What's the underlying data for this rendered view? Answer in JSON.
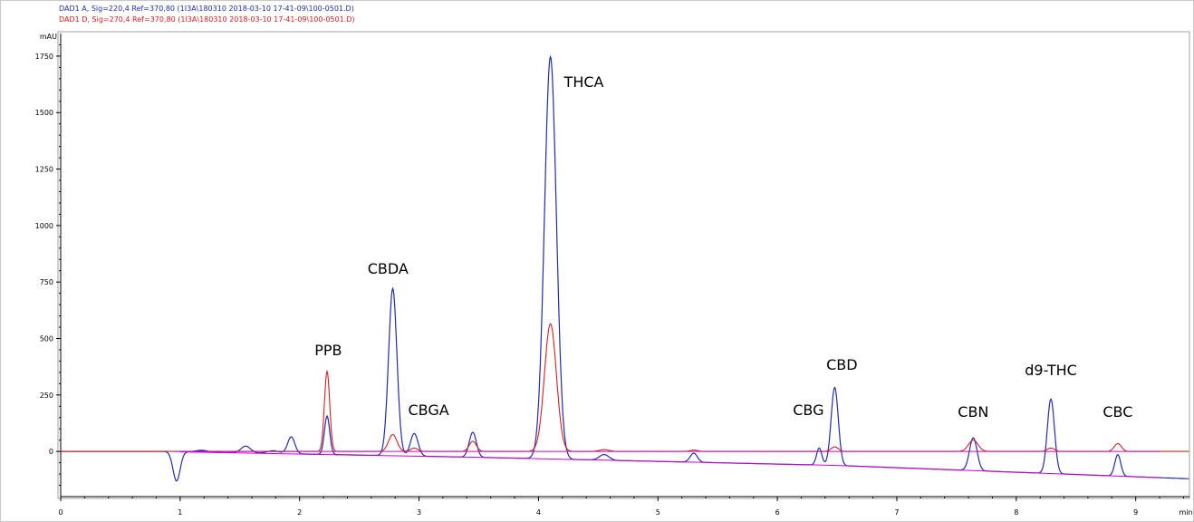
{
  "header": {
    "signals": [
      {
        "text": "DAD1 A, Sig=220,4 Ref=370,80 (1I3A\\180310 2018-03-10 17-41-09\\100-0501.D)",
        "color": "#1f2fa8"
      },
      {
        "text": "DAD1 D, Sig=270,4 Ref=370,80 (1I3A\\180310 2018-03-10 17-41-09\\100-0501.D)",
        "color": "#d42020"
      }
    ]
  },
  "chart_data": {
    "type": "line",
    "ylabel": "mAU",
    "xlabel": "min",
    "xlim": [
      0,
      9.45
    ],
    "ylim": [
      -200,
      1850
    ],
    "yticks": [
      0,
      250,
      500,
      750,
      1000,
      1250,
      1500,
      1750
    ],
    "xticks": [
      0,
      1,
      2,
      3,
      4,
      5,
      6,
      7,
      8,
      9
    ],
    "grid": false,
    "peaks": [
      {
        "label": "PPB",
        "rt": 2.23,
        "height_220": 170,
        "height_270": 355
      },
      {
        "label": "CBDA",
        "rt": 2.78,
        "height_220": 740,
        "height_270": 75
      },
      {
        "label": "CBGA",
        "rt": 2.96,
        "height_220": 100,
        "height_270": 15
      },
      {
        "label": "THCA",
        "rt": 4.1,
        "height_220": 1780,
        "height_270": 565
      },
      {
        "label": "CBG",
        "rt": 6.35,
        "height_220": 20,
        "height_270": 5
      },
      {
        "label": "CBD",
        "rt": 6.48,
        "height_220": 295,
        "height_270": 20
      },
      {
        "label": "CBN",
        "rt": 7.64,
        "height_220": 50,
        "height_270": 50
      },
      {
        "label": "d9-THC",
        "rt": 8.29,
        "height_220": 230,
        "height_270": 15
      },
      {
        "label": "CBC",
        "rt": 8.85,
        "height_220": -20,
        "height_270": 35
      }
    ],
    "series": [
      {
        "name": "DAD1 A, Sig=220,4",
        "color": "#1f2fa8"
      },
      {
        "name": "DAD1 D, Sig=270,4",
        "color": "#d42020"
      },
      {
        "color": "#d000d0"
      }
    ]
  }
}
